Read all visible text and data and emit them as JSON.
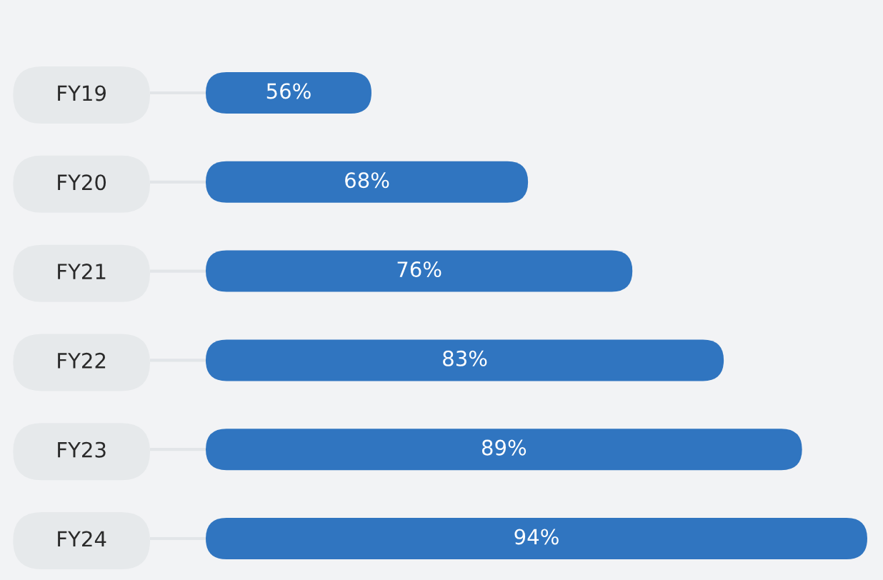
{
  "chart_data": {
    "type": "bar",
    "orientation": "horizontal",
    "categories": [
      "FY19",
      "FY20",
      "FY21",
      "FY22",
      "FY23",
      "FY24"
    ],
    "values": [
      56,
      68,
      76,
      83,
      89,
      94
    ],
    "value_labels": [
      "56%",
      "68%",
      "76%",
      "83%",
      "89%",
      "94%"
    ],
    "color": "#3075c0",
    "xlim": [
      43.3,
      94
    ],
    "tick_labels": "y"
  }
}
